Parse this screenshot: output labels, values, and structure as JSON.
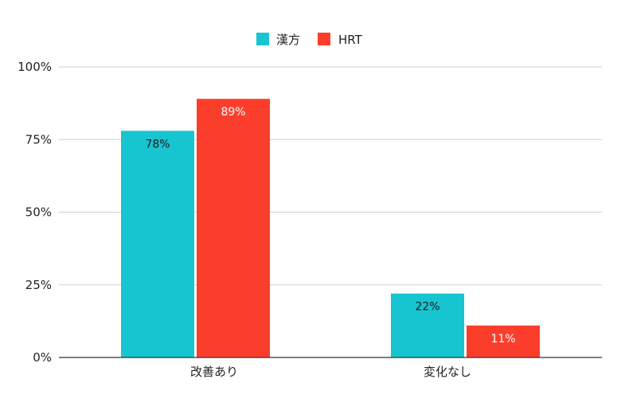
{
  "chart_data": {
    "type": "bar",
    "categories": [
      "改善あり",
      "変化なし"
    ],
    "series": [
      {
        "name": "漢方",
        "values": [
          78,
          22
        ],
        "color": "#17c5d1",
        "label_color": "#1a1a1a"
      },
      {
        "name": "HRT",
        "values": [
          89,
          11
        ],
        "color": "#fb3e2c",
        "label_color": "#ffffff"
      }
    ],
    "data_labels": [
      [
        "78%",
        "22%"
      ],
      [
        "89%",
        "11%"
      ]
    ],
    "y_ticks": [
      {
        "value": 0,
        "label": "0%"
      },
      {
        "value": 25,
        "label": "25%"
      },
      {
        "value": 50,
        "label": "50%"
      },
      {
        "value": 75,
        "label": "75%"
      },
      {
        "value": 100,
        "label": "100%"
      }
    ],
    "ylim": [
      0,
      100
    ],
    "grid": true,
    "legend_position": "top-center",
    "title": "",
    "xlabel": "",
    "ylabel": ""
  }
}
